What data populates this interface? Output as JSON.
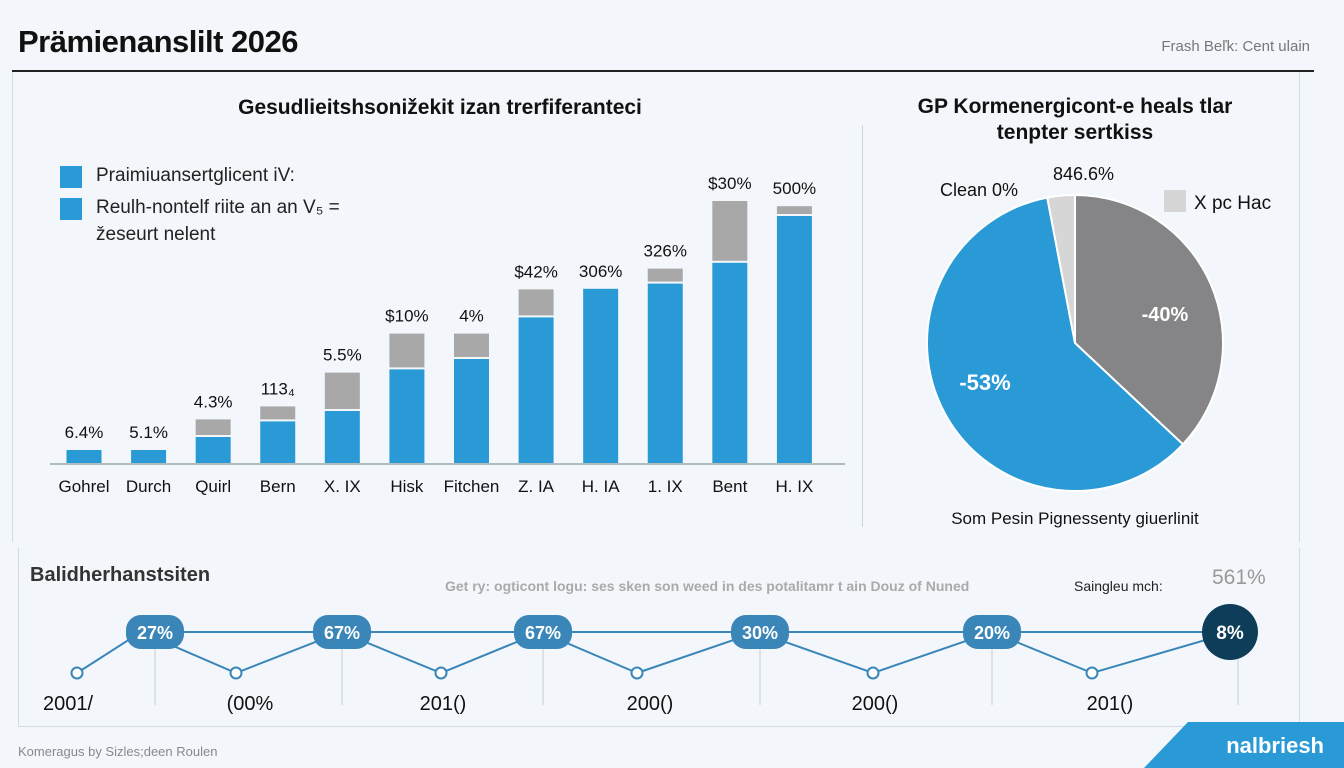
{
  "header": {
    "title": "Prämienanslilt 2026",
    "top_right": "Frash Beľk: Cent ulain"
  },
  "colors": {
    "blue": "#2a9ad6",
    "gray": "#a8a8a8",
    "dark_gray": "#858587",
    "light_gray": "#d6d6d6",
    "timeline_blue": "#3a86b8",
    "timeline_dark": "#0e3d5a"
  },
  "chart_data": [
    {
      "type": "bar",
      "stacked": true,
      "title": "Gesudlieitshsonižekit izan trerfiferanteci",
      "legend": [
        "Praimiuansertglicent iV:",
        "Reulh-nontelf riite an an V₅ = žeseurt nelent"
      ],
      "legend_placement": "top-left",
      "categories": [
        "Gohrel",
        "Durch",
        "Quirl",
        "Bern",
        "X. IX",
        "Hisk",
        "Fitchen",
        "Z. IA",
        "H. IA",
        "1. IX",
        "Bent",
        "H. IX"
      ],
      "series": [
        {
          "values": [
            5,
            5,
            10,
            16,
            20,
            36,
            40,
            56,
            67,
            69,
            77,
            95
          ]
        },
        {
          "values": [
            0,
            0,
            6,
            5,
            14,
            13,
            9,
            10,
            0,
            5,
            23,
            3
          ]
        }
      ],
      "data_labels": [
        "6.4%",
        "5.1%",
        "4.3%",
        "113₄",
        "5.5%",
        "$10%",
        "4%",
        "$42%",
        "306%",
        "326%",
        "$30%",
        "500%"
      ],
      "ylim": [
        0,
        100
      ],
      "grid": false
    },
    {
      "type": "pie",
      "title": "GP Kormenergicont-e heals tlar tenpter sertkiss",
      "slices": [
        {
          "label": "-53%",
          "value": 60,
          "color": "#2a9ad6"
        },
        {
          "label": "-40%",
          "value": 37,
          "color": "#858587"
        },
        {
          "label": "46.6%",
          "value": 3,
          "color": "#d6d6d6"
        }
      ],
      "outer_labels": [
        "Clean 0%",
        "846.6%"
      ],
      "legend": [
        "X pc Hac"
      ],
      "legend_placement": "top-right",
      "caption": "Som Pesin Pignessenty giuerlinit"
    },
    {
      "type": "line",
      "title": "Balidherhanstsiten",
      "note": "Get ry: ogticont logu: ses sken son weed in des potalitamr t ain Douz of Nuned",
      "note_suffix": "Saingleu mch:",
      "summary_value": "561%",
      "points": [
        "low",
        "27%",
        "low",
        "67%",
        "low",
        "67%",
        "low",
        "30%",
        "low",
        "20%",
        "low",
        "8%"
      ],
      "pill_labels": [
        "27%",
        "67%",
        "67%",
        "30%",
        "20%",
        "8%"
      ],
      "x_labels": [
        "2001/",
        "(00%",
        "201()",
        "200()",
        "200()",
        "201()"
      ]
    }
  ],
  "footer": {
    "credit": "Komeragus by Sizles;deen Roulen",
    "brand": "nalbriesh"
  }
}
